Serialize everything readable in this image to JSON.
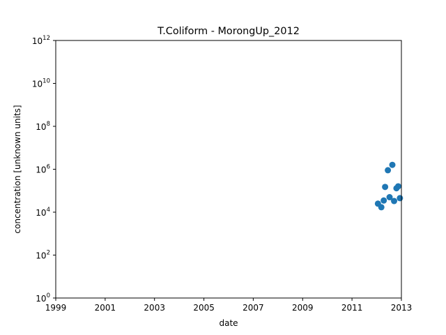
{
  "chart_data": {
    "type": "scatter",
    "title": "T.Coliform - MorongUp_2012",
    "xlabel": "date",
    "ylabel": "concentration [unknown units]",
    "y_scale": "log",
    "xlim": [
      "1999-01-01",
      "2013-01-01"
    ],
    "ylim": [
      1,
      1000000000000.0
    ],
    "x_ticks": [
      "1999",
      "2001",
      "2003",
      "2005",
      "2007",
      "2009",
      "2011",
      "2013"
    ],
    "y_ticks": [
      {
        "base": "10",
        "exp": "0"
      },
      {
        "base": "10",
        "exp": "2"
      },
      {
        "base": "10",
        "exp": "4"
      },
      {
        "base": "10",
        "exp": "6"
      },
      {
        "base": "10",
        "exp": "8"
      },
      {
        "base": "10",
        "exp": "10"
      },
      {
        "base": "10",
        "exp": "12"
      }
    ],
    "grid": false,
    "marker_color": "#1f77b4",
    "points": [
      {
        "x": "2012-01-20",
        "y": 25000
      },
      {
        "x": "2012-03-10",
        "y": 17000
      },
      {
        "x": "2012-04-15",
        "y": 35000
      },
      {
        "x": "2012-05-05",
        "y": 150000
      },
      {
        "x": "2012-06-15",
        "y": 900000
      },
      {
        "x": "2012-07-10",
        "y": 50000
      },
      {
        "x": "2012-08-20",
        "y": 1600000
      },
      {
        "x": "2012-09-15",
        "y": 33000
      },
      {
        "x": "2012-10-20",
        "y": 130000
      },
      {
        "x": "2012-11-15",
        "y": 160000
      },
      {
        "x": "2012-12-10",
        "y": 45000
      }
    ]
  }
}
